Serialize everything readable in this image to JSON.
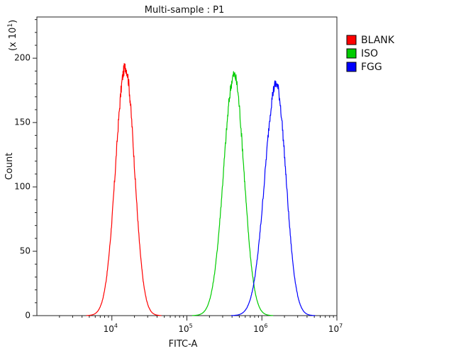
{
  "chart_data": {
    "type": "line",
    "title": "Multi-sample : P1",
    "xlabel": "FITC-A",
    "ylabel": "Count",
    "y_multiplier_label": "(x 10",
    "y_multiplier_exp": "1",
    "y_multiplier_close": ")",
    "x_scale": "log",
    "xlim": [
      1000,
      10000000
    ],
    "ylim": [
      0,
      232
    ],
    "x_ticks": [
      {
        "value": 10000,
        "base": "10",
        "exp": "4"
      },
      {
        "value": 100000,
        "base": "10",
        "exp": "5"
      },
      {
        "value": 1000000,
        "base": "10",
        "exp": "6"
      },
      {
        "value": 10000000,
        "base": "10",
        "exp": "7"
      }
    ],
    "y_ticks": [
      {
        "value": 0,
        "label": "0"
      },
      {
        "value": 50,
        "label": "50"
      },
      {
        "value": 100,
        "label": "100"
      },
      {
        "value": 150,
        "label": "150"
      },
      {
        "value": 200,
        "label": "200"
      }
    ],
    "grid": false,
    "legend_position": "top-right, outside plot",
    "series": [
      {
        "name": "BLANK",
        "color": "#ff0000",
        "peak_log10_x": 4.18,
        "width_left": 0.13,
        "width_right": 0.12,
        "peak_count": 193
      },
      {
        "name": "ISO",
        "color": "#00cc00",
        "peak_log10_x": 5.63,
        "width_left": 0.14,
        "width_right": 0.13,
        "peak_count": 187
      },
      {
        "name": "FGG",
        "color": "#0000ff",
        "peak_log10_x": 6.19,
        "width_left": 0.15,
        "width_right": 0.13,
        "peak_count": 180
      }
    ]
  }
}
